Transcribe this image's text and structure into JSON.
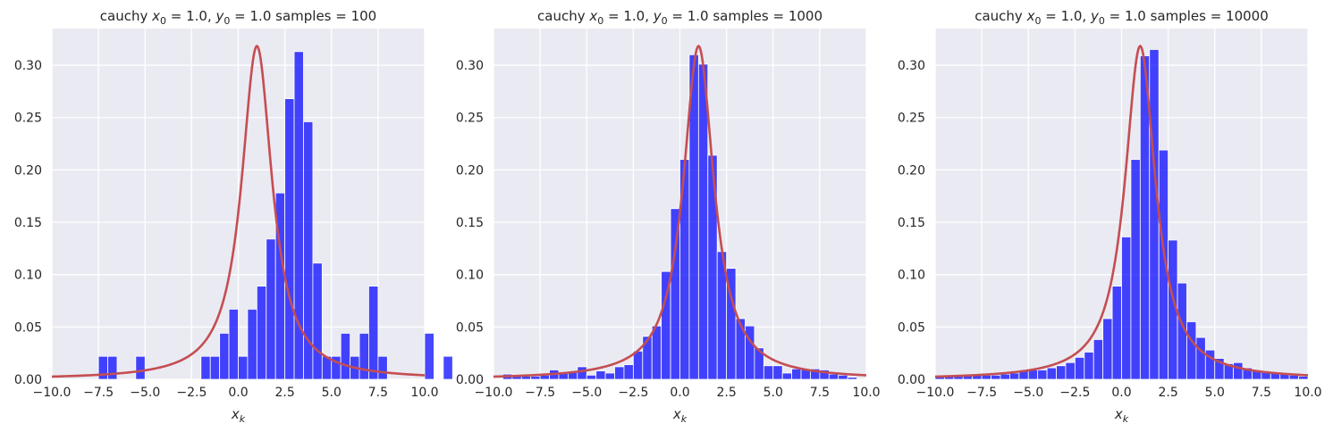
{
  "chart_data": [
    {
      "type": "bar",
      "title": "cauchy $x_0 = 1.0$, $y_0 = 1.0$  samples = 100",
      "title_parts": {
        "pre": "cauchy ",
        "x0": "x",
        "x0_sub": "0",
        "x0_eq": " = 1.0, ",
        "y0": "y",
        "y0_sub": "0",
        "rest": " = 1.0  samples = 100"
      },
      "xlabel": "$x_k$",
      "xlabel_parts": {
        "main": "x",
        "sub": "k"
      },
      "ylabel": "",
      "xlim": [
        -10,
        10
      ],
      "ylim": [
        0,
        0.335
      ],
      "xticks": [
        "−10.0",
        "−7.5",
        "−5.0",
        "−2.5",
        "0.0",
        "2.5",
        "5.0",
        "7.5",
        "10.0"
      ],
      "xtick_values": [
        -10,
        -7.5,
        -5,
        -2.5,
        0,
        2.5,
        5,
        7.5,
        10
      ],
      "yticks": [
        "0.00",
        "0.05",
        "0.10",
        "0.15",
        "0.20",
        "0.25",
        "0.30"
      ],
      "ytick_values": [
        0,
        0.05,
        0.1,
        0.15,
        0.2,
        0.25,
        0.3
      ],
      "grid": true,
      "bins": {
        "start": -7.5,
        "width": 0.5,
        "values": [
          0.022,
          0.022,
          0,
          0,
          0.022,
          0,
          0,
          0,
          0,
          0,
          0,
          0.022,
          0.022,
          0.044,
          0.067,
          0.022,
          0.067,
          0.089,
          0.134,
          0.178,
          0.268,
          0.313,
          0.246,
          0.111,
          0.022,
          0.022,
          0.044,
          0.022,
          0.044,
          0.089,
          0.022,
          0,
          0,
          0,
          0,
          0.044,
          0,
          0.022
        ]
      },
      "curve": {
        "type": "cauchy_pdf",
        "x0": 1.0,
        "y0": 1.0
      }
    },
    {
      "type": "bar",
      "title": "cauchy $x_0 = 1.0$, $y_0 = 1.0$  samples = 1000",
      "title_parts": {
        "pre": "cauchy ",
        "x0": "x",
        "x0_sub": "0",
        "x0_eq": " = 1.0, ",
        "y0": "y",
        "y0_sub": "0",
        "rest": " = 1.0  samples = 1000"
      },
      "xlabel": "$x_k$",
      "xlabel_parts": {
        "main": "x",
        "sub": "k"
      },
      "ylabel": "",
      "xlim": [
        -10,
        10
      ],
      "ylim": [
        0,
        0.335
      ],
      "xticks": [
        "−10.0",
        "−7.5",
        "−5.0",
        "−2.5",
        "0.0",
        "2.5",
        "5.0",
        "7.5",
        "10.0"
      ],
      "xtick_values": [
        -10,
        -7.5,
        -5,
        -2.5,
        0,
        2.5,
        5,
        7.5,
        10
      ],
      "yticks": [
        "0.00",
        "0.05",
        "0.10",
        "0.15",
        "0.20",
        "0.25",
        "0.30"
      ],
      "ytick_values": [
        0,
        0.05,
        0.1,
        0.15,
        0.2,
        0.25,
        0.3
      ],
      "grid": true,
      "bins": {
        "start": -9.5,
        "width": 0.5,
        "values": [
          0.005,
          0.003,
          0.003,
          0.003,
          0.004,
          0.009,
          0.006,
          0.007,
          0.012,
          0.004,
          0.008,
          0.006,
          0.012,
          0.014,
          0.027,
          0.041,
          0.051,
          0.103,
          0.163,
          0.21,
          0.31,
          0.301,
          0.214,
          0.122,
          0.106,
          0.058,
          0.051,
          0.03,
          0.013,
          0.013,
          0.006,
          0.01,
          0.01,
          0.01,
          0.009,
          0.005,
          0.004,
          0.002
        ]
      },
      "curve": {
        "type": "cauchy_pdf",
        "x0": 1.0,
        "y0": 1.0
      }
    },
    {
      "type": "bar",
      "title": "cauchy $x_0 = 1.0$, $y_0 = 1.0$  samples = 10000",
      "title_parts": {
        "pre": "cauchy ",
        "x0": "x",
        "x0_sub": "0",
        "x0_eq": " = 1.0, ",
        "y0": "y",
        "y0_sub": "0",
        "rest": " = 1.0  samples = 10000"
      },
      "xlabel": "$x_k$",
      "xlabel_parts": {
        "main": "x",
        "sub": "k"
      },
      "ylabel": "",
      "xlim": [
        -10,
        10
      ],
      "ylim": [
        0,
        0.335
      ],
      "xticks": [
        "−10.0",
        "−7.5",
        "−5.0",
        "−2.5",
        "0.0",
        "2.5",
        "5.0",
        "7.5",
        "10.0"
      ],
      "xtick_values": [
        -10,
        -7.5,
        -5,
        -2.5,
        0,
        2.5,
        5,
        7.5,
        10
      ],
      "yticks": [
        "0.00",
        "0.05",
        "0.10",
        "0.15",
        "0.20",
        "0.25",
        "0.30"
      ],
      "ytick_values": [
        0,
        0.05,
        0.1,
        0.15,
        0.2,
        0.25,
        0.3
      ],
      "grid": true,
      "bins": {
        "start": -10.0,
        "width": 0.5,
        "values": [
          0.003,
          0.003,
          0.003,
          0.004,
          0.004,
          0.004,
          0.004,
          0.005,
          0.006,
          0.008,
          0.009,
          0.009,
          0.011,
          0.013,
          0.016,
          0.021,
          0.026,
          0.038,
          0.058,
          0.089,
          0.136,
          0.21,
          0.309,
          0.315,
          0.219,
          0.133,
          0.092,
          0.055,
          0.04,
          0.028,
          0.02,
          0.015,
          0.016,
          0.011,
          0.009,
          0.007,
          0.006,
          0.005,
          0.004,
          0.003
        ]
      },
      "curve": {
        "type": "cauchy_pdf",
        "x0": 1.0,
        "y0": 1.0
      }
    }
  ],
  "colors": {
    "bars": "#0000ff",
    "curve": "#c44e52",
    "panel": "#eaeaf2",
    "grid": "#ffffff",
    "text": "#262626"
  }
}
